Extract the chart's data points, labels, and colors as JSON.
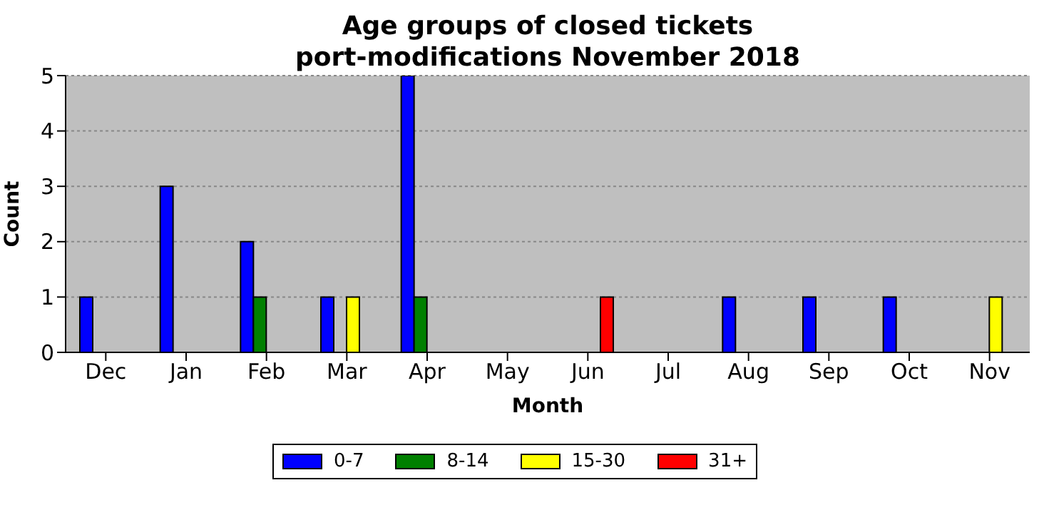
{
  "chart_data": {
    "type": "bar",
    "title": "Age groups of closed tickets\nport-modifications November 2018",
    "xlabel": "Month",
    "ylabel": "Count",
    "categories": [
      "Dec",
      "Jan",
      "Feb",
      "Mar",
      "Apr",
      "May",
      "Jun",
      "Jul",
      "Aug",
      "Sep",
      "Oct",
      "Nov"
    ],
    "series": [
      {
        "name": "0-7",
        "color": "#0000ff",
        "values": [
          1,
          3,
          2,
          1,
          5,
          0,
          0,
          0,
          1,
          1,
          1,
          0
        ]
      },
      {
        "name": "8-14",
        "color": "#008000",
        "values": [
          0,
          0,
          1,
          0,
          1,
          0,
          0,
          0,
          0,
          0,
          0,
          0
        ]
      },
      {
        "name": "15-30",
        "color": "#ffff00",
        "values": [
          0,
          0,
          0,
          1,
          0,
          0,
          0,
          0,
          0,
          0,
          0,
          1
        ]
      },
      {
        "name": "31+",
        "color": "#ff0000",
        "values": [
          0,
          0,
          0,
          0,
          0,
          0,
          1,
          0,
          0,
          0,
          0,
          0
        ]
      }
    ],
    "ylim": [
      0,
      5
    ],
    "yticks": [
      0,
      1,
      2,
      3,
      4,
      5
    ],
    "grid": "y",
    "legend": "bottom"
  }
}
